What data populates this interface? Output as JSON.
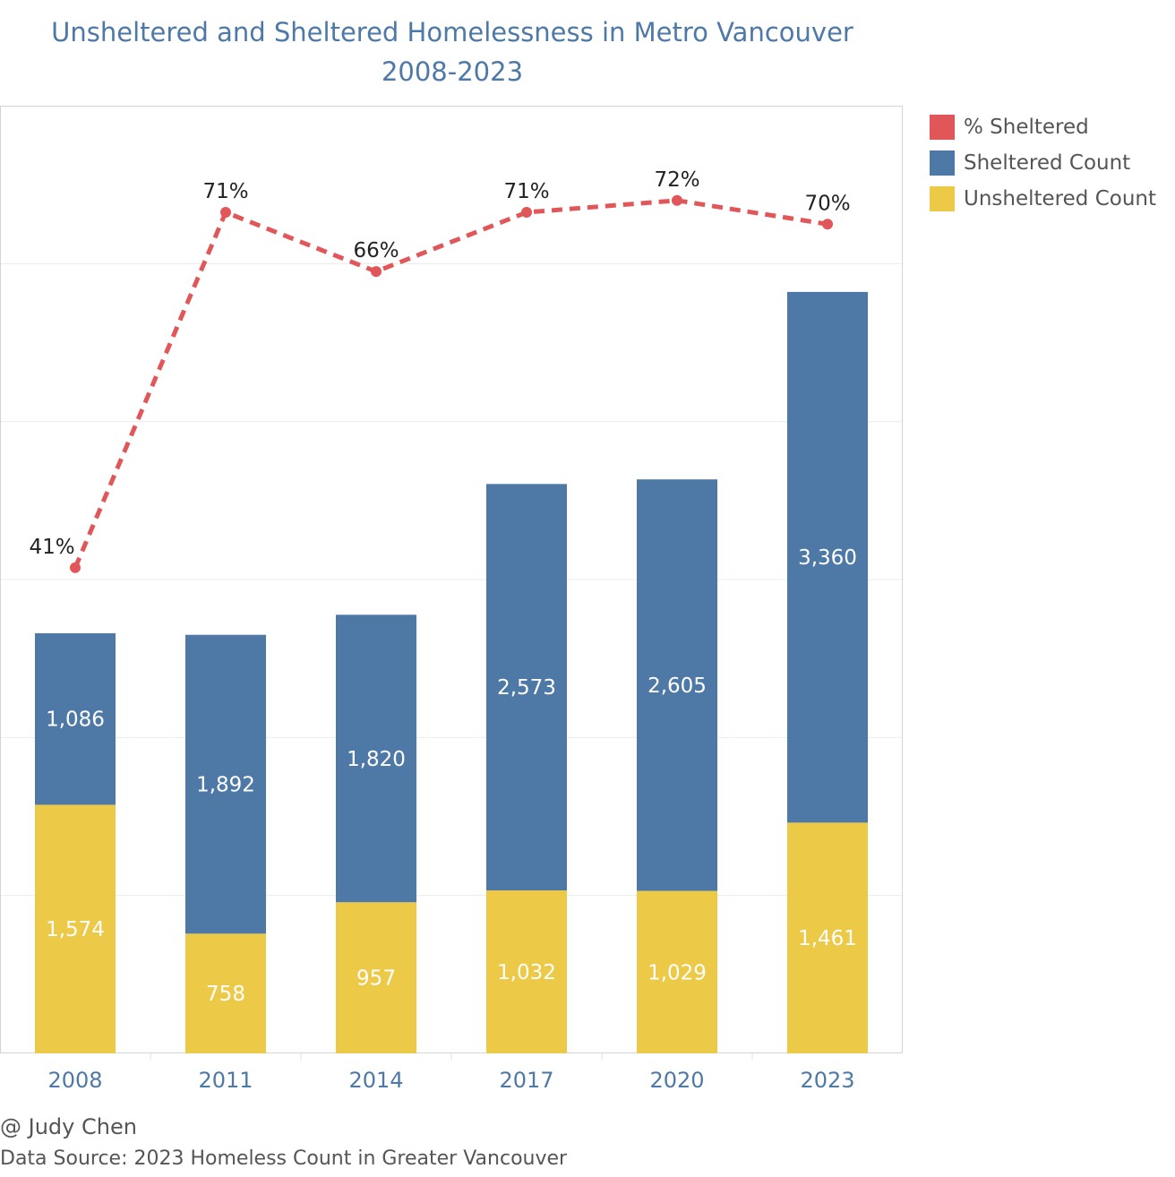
{
  "title": {
    "line1": "Unsheltered and Sheltered Homelessness in Metro Vancouver",
    "line2": "2008-2023"
  },
  "legend": {
    "items": [
      {
        "label": "% Sheltered",
        "color": "#e15759"
      },
      {
        "label": "Sheltered Count",
        "color": "#4e79a7"
      },
      {
        "label": "Unsheltered Count",
        "color": "#edc948"
      }
    ]
  },
  "footer": {
    "credit": "@ Judy Chen",
    "source": "Data Source: 2023 Homeless Count in Greater Vancouver"
  },
  "chart_data": {
    "type": "bar",
    "stacked": true,
    "categories": [
      "2008",
      "2011",
      "2014",
      "2017",
      "2020",
      "2023"
    ],
    "series": [
      {
        "name": "Unsheltered Count",
        "values": [
          1574,
          758,
          957,
          1032,
          1029,
          1461
        ],
        "color": "#edc948"
      },
      {
        "name": "Sheltered Count",
        "values": [
          1086,
          1892,
          1820,
          2573,
          2605,
          3360
        ],
        "color": "#4e79a7"
      }
    ],
    "line_series": {
      "name": "% Sheltered",
      "values": [
        41,
        71,
        66,
        71,
        72,
        70
      ],
      "labels": [
        "41%",
        "71%",
        "66%",
        "71%",
        "72%",
        "70%"
      ],
      "color": "#e15759",
      "style": "dashed"
    },
    "value_labels": {
      "Unsheltered Count": [
        "1,574",
        "758",
        "957",
        "1,032",
        "1,029",
        "1,461"
      ],
      "Sheltered Count": [
        "1,086",
        "1,892",
        "1,820",
        "2,573",
        "2,605",
        "3,360"
      ]
    },
    "ylim": [
      0,
      6000
    ],
    "line_ylim": [
      0,
      80
    ],
    "grid": true,
    "legend_position": "top-right",
    "xlabel": "",
    "ylabel": ""
  }
}
